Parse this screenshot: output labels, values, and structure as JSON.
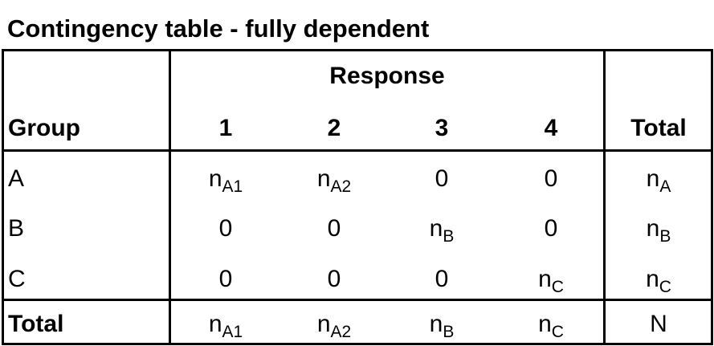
{
  "title": "Contingency table - fully dependent",
  "header": {
    "response_label": "Response",
    "group_label": "Group",
    "columns": [
      "1",
      "2",
      "3",
      "4"
    ],
    "total_label": "Total"
  },
  "rows": [
    {
      "label": "A",
      "cells": [
        {
          "base": "n",
          "sub": "A1"
        },
        {
          "base": "n",
          "sub": "A2"
        },
        {
          "base": "0",
          "sub": ""
        },
        {
          "base": "0",
          "sub": ""
        }
      ],
      "total": {
        "base": "n",
        "sub": "A"
      }
    },
    {
      "label": "B",
      "cells": [
        {
          "base": "0",
          "sub": ""
        },
        {
          "base": "0",
          "sub": ""
        },
        {
          "base": "n",
          "sub": "B"
        },
        {
          "base": "0",
          "sub": ""
        }
      ],
      "total": {
        "base": "n",
        "sub": "B"
      }
    },
    {
      "label": "C",
      "cells": [
        {
          "base": "0",
          "sub": ""
        },
        {
          "base": "0",
          "sub": ""
        },
        {
          "base": "0",
          "sub": ""
        },
        {
          "base": "n",
          "sub": "C"
        }
      ],
      "total": {
        "base": "n",
        "sub": "C"
      }
    }
  ],
  "total_row": {
    "label": "Total",
    "cells": [
      {
        "base": "n",
        "sub": "A1"
      },
      {
        "base": "n",
        "sub": "A2"
      },
      {
        "base": "n",
        "sub": "B"
      },
      {
        "base": "n",
        "sub": "C"
      }
    ],
    "total": {
      "base": "N",
      "sub": ""
    }
  }
}
